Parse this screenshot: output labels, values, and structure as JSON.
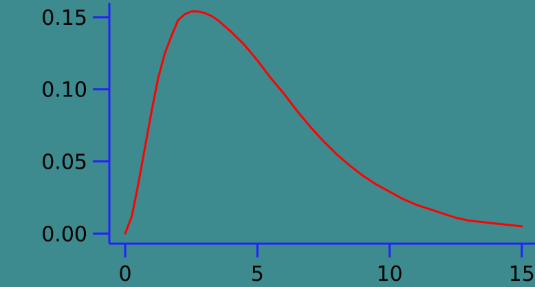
{
  "chart_data": {
    "type": "line",
    "title": "",
    "xlabel": "",
    "ylabel": "",
    "xlim": [
      -0.6,
      15.5
    ],
    "ylim": [
      -0.007,
      0.16
    ],
    "x_ticks": [
      0,
      5,
      10,
      15
    ],
    "x_tick_labels": [
      "0",
      "5",
      "10",
      "15"
    ],
    "y_ticks": [
      0.0,
      0.05,
      0.1,
      0.15
    ],
    "y_tick_labels": [
      "0.00",
      "0.05",
      "0.10",
      "0.15"
    ],
    "grid": false,
    "legend": "none",
    "series": [
      {
        "color": "#ff0000",
        "x": [
          0,
          0.25,
          0.5,
          0.75,
          1,
          1.25,
          1.5,
          1.75,
          2,
          2.25,
          2.5,
          2.75,
          3,
          3.25,
          3.5,
          3.75,
          4,
          4.5,
          5,
          5.5,
          6,
          6.5,
          7,
          7.5,
          8,
          8.5,
          9,
          9.5,
          10,
          10.5,
          11,
          11.5,
          12,
          12.5,
          13,
          13.5,
          14,
          14.5,
          15
        ],
        "y": [
          0.0,
          0.012,
          0.035,
          0.06,
          0.085,
          0.108,
          0.125,
          0.137,
          0.148,
          0.152,
          0.154,
          0.154,
          0.153,
          0.151,
          0.148,
          0.144,
          0.14,
          0.131,
          0.12,
          0.108,
          0.097,
          0.085,
          0.074,
          0.064,
          0.055,
          0.047,
          0.04,
          0.034,
          0.029,
          0.024,
          0.02,
          0.017,
          0.014,
          0.011,
          0.009,
          0.008,
          0.007,
          0.006,
          0.005
        ]
      }
    ],
    "colors": {
      "background": "#3d8a8f",
      "axis": "#2222ff",
      "line": "#ff0000",
      "text": "#000000"
    }
  }
}
